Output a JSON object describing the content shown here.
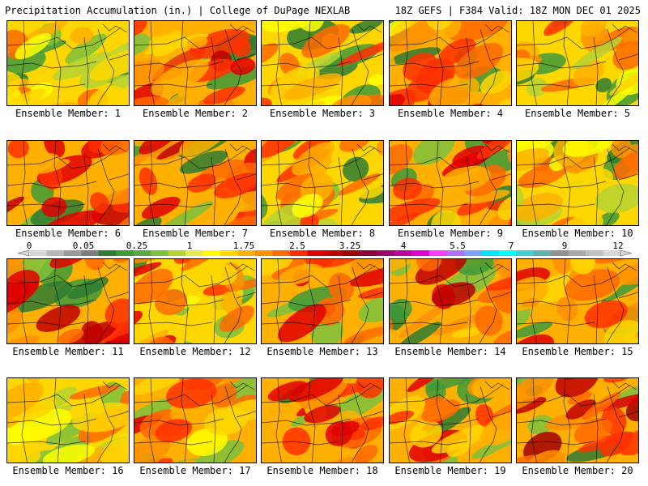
{
  "header": {
    "title": "Precipitation Accumulation (in.) | College of DuPage NEXLAB",
    "run_info": "18Z GEFS | F384 Valid: 18Z MON DEC 01 2025"
  },
  "members": [
    {
      "label": "Ensemble Member: 1",
      "wetness": 0.35
    },
    {
      "label": "Ensemble Member: 2",
      "wetness": 0.62
    },
    {
      "label": "Ensemble Member: 3",
      "wetness": 0.42
    },
    {
      "label": "Ensemble Member: 4",
      "wetness": 0.52
    },
    {
      "label": "Ensemble Member: 5",
      "wetness": 0.38
    },
    {
      "label": "Ensemble Member: 6",
      "wetness": 0.68
    },
    {
      "label": "Ensemble Member: 7",
      "wetness": 0.66
    },
    {
      "label": "Ensemble Member: 8",
      "wetness": 0.4
    },
    {
      "label": "Ensemble Member: 9",
      "wetness": 0.55
    },
    {
      "label": "Ensemble Member: 10",
      "wetness": 0.36
    },
    {
      "label": "Ensemble Member: 11",
      "wetness": 0.64
    },
    {
      "label": "Ensemble Member: 12",
      "wetness": 0.48
    },
    {
      "label": "Ensemble Member: 13",
      "wetness": 0.55
    },
    {
      "label": "Ensemble Member: 14",
      "wetness": 0.6
    },
    {
      "label": "Ensemble Member: 15",
      "wetness": 0.54
    },
    {
      "label": "Ensemble Member: 16",
      "wetness": 0.34
    },
    {
      "label": "Ensemble Member: 17",
      "wetness": 0.52
    },
    {
      "label": "Ensemble Member: 18",
      "wetness": 0.58
    },
    {
      "label": "Ensemble Member: 19",
      "wetness": 0.56
    },
    {
      "label": "Ensemble Member: 20",
      "wetness": 0.72
    }
  ],
  "colorbar": {
    "labels": [
      "0",
      "0.05",
      "0.25",
      "1",
      "1.75",
      "2.5",
      "3.25",
      "4",
      "5.5",
      "7",
      "9",
      "12"
    ],
    "colors": [
      "#d6d6d6",
      "#b8b8b8",
      "#9a9a9a",
      "#7c7c7c",
      "#2e7d32",
      "#3f9a3a",
      "#5aa64b",
      "#7cc13e",
      "#b5d334",
      "#e9e94a",
      "#ffff00",
      "#ffd700",
      "#ffb000",
      "#ff9000",
      "#ff6a00",
      "#ff3000",
      "#e00000",
      "#c00000",
      "#a00000",
      "#8b0038",
      "#a0006a",
      "#c0009a",
      "#e000d0",
      "#ff3cff",
      "#b070ff",
      "#7fa0ff",
      "#00e0ff",
      "#00ffff",
      "#40d0d0",
      "#60b0b0",
      "#909090",
      "#a8a8a8",
      "#c0c0c0",
      "#d8d8d8"
    ]
  }
}
